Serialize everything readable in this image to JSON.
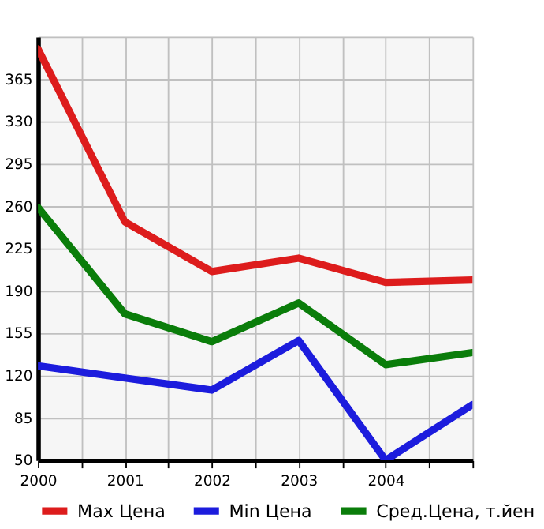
{
  "chart_data": {
    "type": "line",
    "x": [
      2000,
      2001,
      2002,
      2003,
      2004,
      2005
    ],
    "series": [
      {
        "name": "Max Цена",
        "color": "#dd1c1c",
        "values": [
          390,
          247,
          206,
          217,
          197,
          199
        ]
      },
      {
        "name": "Min Цена",
        "color": "#1c1cdd",
        "values": [
          128,
          118,
          108,
          149,
          50,
          96
        ]
      },
      {
        "name": "Сред.Цена, т.йен",
        "color": "#0a7d0a",
        "values": [
          259,
          171,
          148,
          180,
          129,
          139
        ]
      }
    ],
    "xlim": [
      2000,
      2005
    ],
    "xticks": [
      2000,
      {
        "value": 2000.5,
        "label": null
      },
      2001,
      {
        "value": 2001.5,
        "label": null
      },
      2002,
      {
        "value": 2002.5,
        "label": null
      },
      2003,
      {
        "value": 2003.5,
        "label": null
      },
      2004,
      {
        "value": 2004.5,
        "label": null
      },
      {
        "value": 2005,
        "label": null
      }
    ],
    "ylim": [
      50,
      400
    ],
    "yticks": [
      50,
      85,
      120,
      155,
      190,
      225,
      260,
      295,
      330,
      365,
      {
        "value": 400,
        "label": null
      }
    ],
    "grid": true,
    "legend": "bottom",
    "marker": "none",
    "line_style": "solid"
  }
}
